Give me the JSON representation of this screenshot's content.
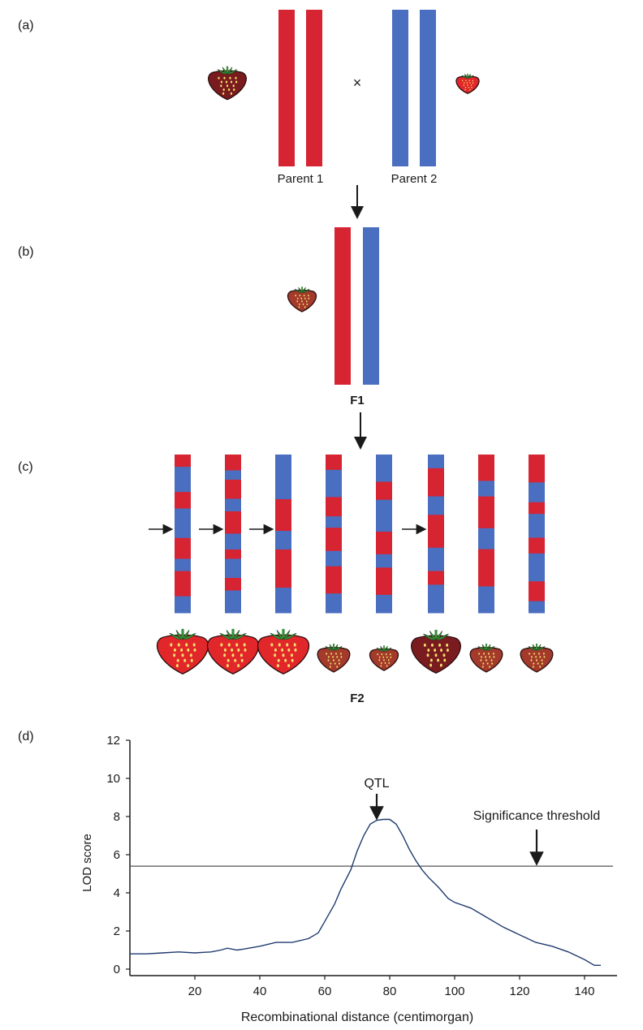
{
  "colors": {
    "red": "#d62433",
    "blue": "#4a6fc0",
    "berry_dark": "#7a1c1f",
    "berry_mid": "#a33a2b",
    "berry_bright": "#e2272b",
    "leaf": "#3a8f3a",
    "seed": "#f3e26a",
    "curve": "#1f3b6e"
  },
  "panels": {
    "a": {
      "label": "(a)",
      "cross": "×",
      "parent1": "Parent 1",
      "parent2": "Parent 2"
    },
    "b": {
      "label": "(b)",
      "name": "F1"
    },
    "c": {
      "label": "(c)",
      "name": "F2",
      "chromosomes": [
        {
          "segments": [
            "red",
            "blue",
            "red",
            "blue",
            "red",
            "blue",
            "red",
            "blue"
          ],
          "arrow": true,
          "fruit": "large-bright"
        },
        {
          "segments": [
            "red",
            "blue",
            "red",
            "blue",
            "red",
            "blue",
            "red",
            "blue",
            "red",
            "blue"
          ],
          "arrow": true,
          "fruit": "large-bright"
        },
        {
          "segments": [
            "blue",
            "red",
            "blue",
            "red",
            "blue"
          ],
          "arrow": true,
          "fruit": "large-bright"
        },
        {
          "segments": [
            "red",
            "blue",
            "red",
            "blue",
            "red",
            "blue",
            "red",
            "blue"
          ],
          "arrow": false,
          "fruit": "small-mid"
        },
        {
          "segments": [
            "blue",
            "red",
            "blue",
            "red",
            "blue",
            "red",
            "blue"
          ],
          "arrow": false,
          "fruit": "small-dark"
        },
        {
          "segments": [
            "blue",
            "red",
            "blue",
            "red",
            "blue",
            "red",
            "blue"
          ],
          "arrow": true,
          "fruit": "large-dark"
        },
        {
          "segments": [
            "red",
            "blue",
            "red",
            "blue",
            "red",
            "blue"
          ],
          "arrow": false,
          "fruit": "small-mid"
        },
        {
          "segments": [
            "red",
            "blue",
            "red",
            "blue",
            "red",
            "blue",
            "red",
            "blue"
          ],
          "arrow": false,
          "fruit": "small-mid"
        }
      ]
    },
    "d": {
      "label": "(d)"
    }
  },
  "chart_data": {
    "type": "line",
    "xlabel": "Recombinational distance (centimorgan)",
    "ylabel": "LOD score",
    "xlim": [
      0,
      150
    ],
    "ylim": [
      0,
      12
    ],
    "xticks": [
      20,
      40,
      60,
      80,
      100,
      120,
      140
    ],
    "yticks": [
      0,
      2,
      4,
      6,
      8,
      10,
      12
    ],
    "threshold": 5.4,
    "annotations": {
      "peak": "QTL",
      "threshold": "Significance threshold"
    },
    "x": [
      0,
      5,
      10,
      15,
      20,
      25,
      28,
      30,
      33,
      35,
      40,
      45,
      50,
      55,
      58,
      60,
      63,
      65,
      68,
      70,
      72,
      74,
      76,
      78,
      80,
      82,
      84,
      86,
      88,
      90,
      92,
      95,
      98,
      100,
      105,
      110,
      115,
      120,
      125,
      130,
      135,
      140,
      143,
      145
    ],
    "y": [
      0.8,
      0.8,
      0.85,
      0.9,
      0.85,
      0.9,
      1.0,
      1.1,
      1.0,
      1.05,
      1.2,
      1.4,
      1.4,
      1.6,
      1.9,
      2.5,
      3.4,
      4.2,
      5.2,
      6.2,
      7.0,
      7.6,
      7.8,
      7.85,
      7.85,
      7.6,
      7.0,
      6.3,
      5.7,
      5.2,
      4.8,
      4.3,
      3.7,
      3.5,
      3.2,
      2.7,
      2.2,
      1.8,
      1.4,
      1.2,
      0.9,
      0.5,
      0.2,
      0.2
    ]
  }
}
